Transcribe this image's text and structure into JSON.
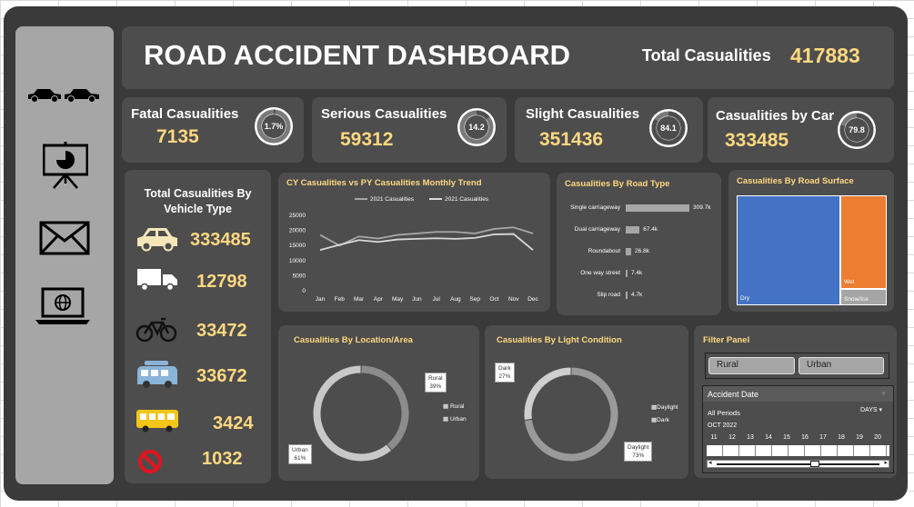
{
  "header": {
    "title": "ROAD ACCIDENT DASHBOARD",
    "total_label": "Total Casualities",
    "total_value": "417883"
  },
  "kpis": [
    {
      "label": "Fatal Casualities",
      "value": "7135",
      "pct_label": "1.7%",
      "pct": 1.7
    },
    {
      "label": "Serious Casualities",
      "value": "59312",
      "pct_label": "14.2",
      "pct": 14.2
    },
    {
      "label": "Slight Casualities",
      "value": "351436",
      "pct_label": "84.1",
      "pct": 84.1
    },
    {
      "label": "Casualities by Car",
      "value": "333485",
      "pct_label": "79.8",
      "pct": 79.8
    }
  ],
  "sidebar": {
    "icons": [
      "cars-icon",
      "presentation-icon",
      "mail-icon",
      "laptop-globe-icon"
    ]
  },
  "vehicle": {
    "title_line1": "Total Casualities By",
    "title_line2": "Vehicle Type",
    "rows": [
      {
        "icon": "car-icon",
        "value": "333485"
      },
      {
        "icon": "truck-icon",
        "value": "12798"
      },
      {
        "icon": "bicycle-icon",
        "value": "33472"
      },
      {
        "icon": "van-icon",
        "value": "33672"
      },
      {
        "icon": "bus-icon",
        "value": "3424"
      },
      {
        "icon": "no-entry-icon",
        "value": "1032"
      }
    ]
  },
  "trend": {
    "title": "CY Casualities vs PY Casualities Monthly Trend",
    "chart_data": {
      "type": "line",
      "x": [
        "Jan",
        "Feb",
        "Mar",
        "Apr",
        "May",
        "Jun",
        "Jul",
        "Aug",
        "Sep",
        "Oct",
        "Nov",
        "Dec"
      ],
      "series": [
        {
          "name": "2021 Casualities",
          "values": [
            18500,
            15000,
            18000,
            17300,
            18500,
            19000,
            19500,
            19500,
            19000,
            20500,
            21000,
            19000
          ]
        },
        {
          "name": "2021 Casualities",
          "values": [
            13500,
            15200,
            16800,
            16200,
            17000,
            17200,
            17400,
            17200,
            17500,
            18700,
            18800,
            13500
          ]
        }
      ],
      "yticks": [
        "0",
        "5000",
        "10000",
        "15000",
        "20000",
        "25000"
      ],
      "ylim": [
        0,
        25000
      ]
    }
  },
  "road_type": {
    "title": "Casualities By Road Type",
    "chart_data": {
      "type": "bar",
      "categories": [
        "Single carriageway",
        "Dual carriageway",
        "Roundabout",
        "One way street",
        "Slip road"
      ],
      "values": [
        309.7,
        67.4,
        26.8,
        7.4,
        4.7
      ],
      "labels": [
        "309.7k",
        "67.4k",
        "26.8k",
        "7.4k",
        "4.7k"
      ]
    }
  },
  "road_surface": {
    "title": "Casualities By Road Surface",
    "chart_data": {
      "type": "treemap",
      "categories": [
        "Dry",
        "Wet",
        "Snow/Ice"
      ],
      "colors": [
        "#4472c4",
        "#ed7d31",
        "#a5a5a5"
      ]
    }
  },
  "location": {
    "title": "Casualities By Location/Area",
    "chart_data": {
      "type": "pie",
      "categories": [
        "Rural",
        "Urban"
      ],
      "values": [
        39,
        61
      ],
      "labels": [
        "Rural\n39%",
        "Urban\n61%"
      ],
      "colors": [
        "#8c8c8c",
        "#c8c8c8"
      ]
    }
  },
  "light": {
    "title": "Casualities By Light Condition",
    "chart_data": {
      "type": "pie",
      "categories": [
        "Daylight",
        "Dark"
      ],
      "values": [
        73,
        27
      ],
      "colors": [
        "#9a9a9a",
        "#cfcfcf"
      ]
    }
  },
  "loc_labels": {
    "rural": "Rural",
    "rural_pct": "39%",
    "urban": "Urban",
    "urban_pct": "61%"
  },
  "light_labels": {
    "dark": "Dark",
    "dark_pct": "27%",
    "day": "Daylight",
    "day_pct": "73%"
  },
  "filter": {
    "title": "Filter Panel",
    "buttons": [
      "Rural",
      "Urban"
    ],
    "timeline_title": "Accident Date",
    "periods": "All Periods",
    "unit": "DAYS",
    "month": "OCT 2022",
    "days": [
      "11",
      "12",
      "13",
      "14",
      "15",
      "16",
      "17",
      "18",
      "19",
      "20"
    ]
  }
}
